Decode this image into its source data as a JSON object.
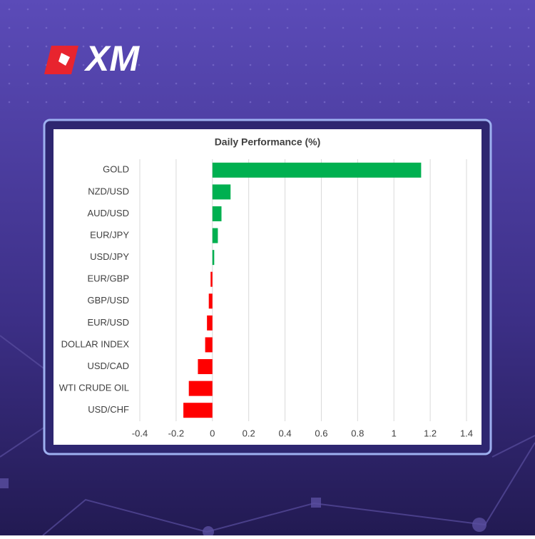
{
  "brand": "XM",
  "chart_data": {
    "type": "hbar",
    "title": "Daily Performance (%)",
    "categories": [
      "GOLD",
      "NZD/USD",
      "AUD/USD",
      "EUR/JPY",
      "USD/JPY",
      "EUR/GBP",
      "GBP/USD",
      "EUR/USD",
      "DOLLAR INDEX",
      "USD/CAD",
      "WTI CRUDE OIL",
      "USD/CHF"
    ],
    "values": [
      1.15,
      0.1,
      0.05,
      0.03,
      0.01,
      -0.01,
      -0.02,
      -0.03,
      -0.04,
      -0.08,
      -0.13,
      -0.16
    ],
    "positive_color": "#00b050",
    "negative_color": "#ff0000",
    "xlim": [
      -0.4,
      1.4
    ],
    "xticks": [
      -0.4,
      -0.2,
      0,
      0.2,
      0.4,
      0.6,
      0.8,
      1,
      1.2,
      1.4
    ],
    "grid": true
  }
}
